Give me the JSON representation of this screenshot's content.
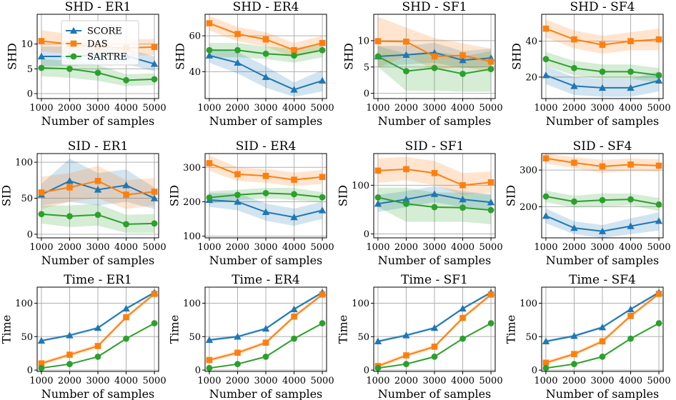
{
  "figure": {
    "xlabel": "Number of samples",
    "x_ticks": [
      1000,
      2000,
      3000,
      4000,
      5000
    ],
    "legend": {
      "placement": "inside first panel, top-left",
      "entries": [
        {
          "name": "SCORE",
          "color": "#1f77b4",
          "marker": "triangle"
        },
        {
          "name": "DAS",
          "color": "#ff7f0e",
          "marker": "square"
        },
        {
          "name": "SARTRE",
          "color": "#2ca02c",
          "marker": "circle"
        }
      ]
    }
  },
  "chart_data": [
    {
      "type": "line",
      "title": "SHD - ER1",
      "xlabel": "Number of samples",
      "ylabel": "SHD",
      "x": [
        1000,
        2000,
        3000,
        4000,
        5000
      ],
      "xlim": [
        850,
        5150
      ],
      "ylim": [
        -1,
        16
      ],
      "yticks": [
        0,
        5,
        10
      ],
      "series": [
        {
          "name": "SCORE",
          "values": [
            7.5,
            7.5,
            7.8,
            7.6,
            6.0
          ],
          "lower": [
            5.5,
            5.5,
            6.0,
            6.0,
            4.5
          ],
          "upper": [
            9.5,
            9.5,
            9.5,
            9.2,
            7.5
          ]
        },
        {
          "name": "DAS",
          "values": [
            10.6,
            10.0,
            9.4,
            9.2,
            9.4
          ],
          "lower": [
            8.5,
            8.0,
            7.5,
            7.5,
            7.8
          ],
          "upper": [
            12.8,
            12.0,
            11.4,
            11.0,
            11.0
          ]
        },
        {
          "name": "SARTRE",
          "values": [
            5.2,
            5.0,
            4.2,
            2.7,
            2.9
          ],
          "lower": [
            3.5,
            3.2,
            2.6,
            1.5,
            1.7
          ],
          "upper": [
            7.0,
            6.6,
            5.8,
            3.9,
            4.1
          ]
        }
      ]
    },
    {
      "type": "line",
      "title": "SHD - ER4",
      "xlabel": "Number of samples",
      "ylabel": "SHD",
      "x": [
        1000,
        2000,
        3000,
        4000,
        5000
      ],
      "xlim": [
        850,
        5150
      ],
      "ylim": [
        25,
        72
      ],
      "yticks": [
        40,
        60
      ],
      "series": [
        {
          "name": "SCORE",
          "values": [
            49,
            45,
            37,
            30,
            35
          ],
          "lower": [
            45,
            39,
            31,
            26,
            29
          ],
          "upper": [
            53,
            51,
            43,
            34,
            41
          ]
        },
        {
          "name": "DAS",
          "values": [
            67,
            61,
            58,
            52,
            56
          ],
          "lower": [
            63,
            57,
            54,
            48,
            52
          ],
          "upper": [
            71,
            65,
            62,
            56,
            60
          ]
        },
        {
          "name": "SARTRE",
          "values": [
            52,
            52,
            50,
            49,
            52
          ],
          "lower": [
            48,
            48,
            47,
            45,
            48
          ],
          "upper": [
            56,
            56,
            54,
            53,
            56
          ]
        }
      ]
    },
    {
      "type": "line",
      "title": "SHD - SF1",
      "xlabel": "Number of samples",
      "ylabel": "SHD",
      "x": [
        1000,
        2000,
        3000,
        4000,
        5000
      ],
      "xlim": [
        850,
        5150
      ],
      "ylim": [
        -1,
        15
      ],
      "yticks": [
        0,
        5,
        10
      ],
      "series": [
        {
          "name": "SCORE",
          "values": [
            7.0,
            7.3,
            7.7,
            6.3,
            6.7
          ],
          "lower": [
            5.0,
            5.5,
            5.8,
            4.8,
            5.0
          ],
          "upper": [
            9.0,
            9.0,
            9.6,
            8.0,
            8.5
          ]
        },
        {
          "name": "DAS",
          "values": [
            9.9,
            9.8,
            7.0,
            7.2,
            6.0
          ],
          "lower": [
            5.0,
            7.0,
            4.5,
            5.0,
            4.0
          ],
          "upper": [
            14.5,
            12.5,
            10.5,
            9.5,
            8.5
          ]
        },
        {
          "name": "SARTRE",
          "values": [
            7.0,
            4.2,
            4.8,
            3.7,
            4.6
          ],
          "lower": [
            5.0,
            0.5,
            0.5,
            0.3,
            0.3
          ],
          "upper": [
            9.0,
            7.5,
            8.0,
            7.0,
            8.0
          ]
        }
      ]
    },
    {
      "type": "line",
      "title": "SHD - SF4",
      "xlabel": "Number of samples",
      "ylabel": "SHD",
      "x": [
        1000,
        2000,
        3000,
        4000,
        5000
      ],
      "xlim": [
        850,
        5150
      ],
      "ylim": [
        8,
        55
      ],
      "yticks": [
        20,
        40
      ],
      "series": [
        {
          "name": "SCORE",
          "values": [
            21,
            15,
            14,
            14,
            18
          ],
          "lower": [
            16,
            10,
            9,
            9,
            12
          ],
          "upper": [
            26,
            20,
            19,
            19,
            23
          ]
        },
        {
          "name": "DAS",
          "values": [
            47,
            41,
            38,
            40,
            41
          ],
          "lower": [
            42,
            36,
            33,
            35,
            35
          ],
          "upper": [
            52,
            46,
            43,
            45,
            47
          ]
        },
        {
          "name": "SARTRE",
          "values": [
            30,
            25,
            23,
            23,
            21
          ],
          "lower": [
            26,
            21,
            19,
            19,
            17
          ],
          "upper": [
            34,
            29,
            27,
            27,
            25
          ]
        }
      ]
    },
    {
      "type": "line",
      "title": "SID - ER1",
      "xlabel": "Number of samples",
      "ylabel": "SID",
      "x": [
        1000,
        2000,
        3000,
        4000,
        5000
      ],
      "xlim": [
        850,
        5150
      ],
      "ylim": [
        -5,
        112
      ],
      "yticks": [
        0,
        50,
        100
      ],
      "series": [
        {
          "name": "SCORE",
          "values": [
            55,
            74,
            62,
            68,
            50
          ],
          "lower": [
            40,
            45,
            40,
            45,
            35
          ],
          "upper": [
            70,
            105,
            85,
            90,
            65
          ]
        },
        {
          "name": "DAS",
          "values": [
            58,
            65,
            74,
            55,
            59
          ],
          "lower": [
            35,
            45,
            50,
            35,
            40
          ],
          "upper": [
            80,
            85,
            95,
            75,
            78
          ]
        },
        {
          "name": "SARTRE",
          "values": [
            28,
            25,
            27,
            14,
            15
          ],
          "lower": [
            15,
            10,
            12,
            2,
            2
          ],
          "upper": [
            40,
            40,
            42,
            27,
            28
          ]
        }
      ]
    },
    {
      "type": "line",
      "title": "SID - ER4",
      "xlabel": "Number of samples",
      "ylabel": "SID",
      "x": [
        1000,
        2000,
        3000,
        4000,
        5000
      ],
      "xlim": [
        850,
        5150
      ],
      "ylim": [
        95,
        340
      ],
      "yticks": [
        100,
        200,
        300
      ],
      "series": [
        {
          "name": "SCORE",
          "values": [
            205,
            200,
            170,
            155,
            175
          ],
          "lower": [
            185,
            175,
            145,
            130,
            150
          ],
          "upper": [
            225,
            225,
            195,
            180,
            200
          ]
        },
        {
          "name": "DAS",
          "values": [
            312,
            280,
            275,
            264,
            272
          ],
          "lower": [
            290,
            260,
            255,
            245,
            252
          ],
          "upper": [
            335,
            300,
            295,
            285,
            292
          ]
        },
        {
          "name": "SARTRE",
          "values": [
            212,
            220,
            225,
            222,
            213
          ],
          "lower": [
            195,
            205,
            210,
            205,
            198
          ],
          "upper": [
            230,
            235,
            240,
            240,
            228
          ]
        }
      ]
    },
    {
      "type": "line",
      "title": "SID - SF1",
      "xlabel": "Number of samples",
      "ylabel": "SID",
      "x": [
        1000,
        2000,
        3000,
        4000,
        5000
      ],
      "xlim": [
        850,
        5150
      ],
      "ylim": [
        -8,
        165
      ],
      "yticks": [
        0,
        100
      ],
      "series": [
        {
          "name": "SCORE",
          "values": [
            62,
            71,
            82,
            71,
            65
          ],
          "lower": [
            45,
            55,
            65,
            55,
            50
          ],
          "upper": [
            80,
            88,
            98,
            88,
            82
          ]
        },
        {
          "name": "DAS",
          "values": [
            130,
            133,
            125,
            100,
            106
          ],
          "lower": [
            105,
            110,
            100,
            80,
            85
          ],
          "upper": [
            155,
            158,
            150,
            125,
            128
          ]
        },
        {
          "name": "SARTRE",
          "values": [
            75,
            62,
            55,
            54,
            49
          ],
          "lower": [
            55,
            25,
            25,
            25,
            20
          ],
          "upper": [
            95,
            95,
            85,
            85,
            80
          ]
        }
      ]
    },
    {
      "type": "line",
      "title": "SID - SF4",
      "xlabel": "Number of samples",
      "ylabel": "SID",
      "x": [
        1000,
        2000,
        3000,
        4000,
        5000
      ],
      "xlim": [
        850,
        5150
      ],
      "ylim": [
        115,
        345
      ],
      "yticks": [
        200,
        300
      ],
      "series": [
        {
          "name": "SCORE",
          "values": [
            175,
            142,
            133,
            147,
            161
          ],
          "lower": [
            155,
            125,
            115,
            125,
            135
          ],
          "upper": [
            195,
            160,
            150,
            168,
            185
          ]
        },
        {
          "name": "DAS",
          "values": [
            332,
            320,
            310,
            315,
            312
          ],
          "lower": [
            318,
            305,
            292,
            298,
            295
          ],
          "upper": [
            345,
            335,
            328,
            332,
            330
          ]
        },
        {
          "name": "SARTRE",
          "values": [
            228,
            214,
            218,
            220,
            206
          ],
          "lower": [
            212,
            198,
            200,
            204,
            188
          ],
          "upper": [
            244,
            230,
            236,
            236,
            224
          ]
        }
      ]
    },
    {
      "type": "line",
      "title": "Time - ER1",
      "xlabel": "Number of samples",
      "ylabel": "Time",
      "x": [
        1000,
        2000,
        3000,
        4000,
        5000
      ],
      "xlim": [
        850,
        5150
      ],
      "ylim": [
        -2,
        124
      ],
      "yticks": [
        0,
        50,
        100
      ],
      "series": [
        {
          "name": "SCORE",
          "values": [
            44,
            52,
            63,
            92,
            116
          ],
          "lower": [
            42,
            50,
            61,
            90,
            114
          ],
          "upper": [
            46,
            54,
            65,
            94,
            118
          ]
        },
        {
          "name": "DAS",
          "values": [
            10,
            23,
            36,
            79,
            114
          ],
          "lower": [
            7,
            20,
            33,
            76,
            111
          ],
          "upper": [
            13,
            26,
            39,
            82,
            117
          ]
        },
        {
          "name": "SARTRE",
          "values": [
            3,
            9,
            20,
            47,
            70
          ],
          "lower": [
            2,
            8,
            19,
            46,
            69
          ],
          "upper": [
            4,
            10,
            21,
            48,
            71
          ]
        }
      ]
    },
    {
      "type": "line",
      "title": "Time - ER4",
      "xlabel": "Number of samples",
      "ylabel": "Time",
      "x": [
        1000,
        2000,
        3000,
        4000,
        5000
      ],
      "xlim": [
        850,
        5150
      ],
      "ylim": [
        -2,
        124
      ],
      "yticks": [
        0,
        50,
        100
      ],
      "series": [
        {
          "name": "SCORE",
          "values": [
            45,
            50,
            62,
            91,
            116
          ],
          "lower": [
            43,
            48,
            60,
            89,
            114
          ],
          "upper": [
            47,
            52,
            64,
            93,
            118
          ]
        },
        {
          "name": "DAS",
          "values": [
            15,
            26,
            41,
            80,
            113
          ],
          "lower": [
            12,
            23,
            38,
            77,
            110
          ],
          "upper": [
            18,
            29,
            44,
            83,
            116
          ]
        },
        {
          "name": "SARTRE",
          "values": [
            3,
            9,
            20,
            47,
            70
          ],
          "lower": [
            2,
            8,
            19,
            46,
            69
          ],
          "upper": [
            4,
            10,
            21,
            48,
            71
          ]
        }
      ]
    },
    {
      "type": "line",
      "title": "Time - SF1",
      "xlabel": "Number of samples",
      "ylabel": "Time",
      "x": [
        1000,
        2000,
        3000,
        4000,
        5000
      ],
      "xlim": [
        850,
        5150
      ],
      "ylim": [
        -2,
        124
      ],
      "yticks": [
        0,
        50,
        100
      ],
      "series": [
        {
          "name": "SCORE",
          "values": [
            43,
            52,
            63,
            92,
            116
          ],
          "lower": [
            41,
            50,
            61,
            90,
            114
          ],
          "upper": [
            45,
            54,
            65,
            94,
            118
          ]
        },
        {
          "name": "DAS",
          "values": [
            6,
            22,
            35,
            78,
            113
          ],
          "lower": [
            3,
            19,
            32,
            75,
            110
          ],
          "upper": [
            9,
            25,
            38,
            81,
            116
          ]
        },
        {
          "name": "SARTRE",
          "values": [
            3,
            9,
            20,
            47,
            70
          ],
          "lower": [
            2,
            8,
            19,
            46,
            69
          ],
          "upper": [
            4,
            10,
            21,
            48,
            71
          ]
        }
      ]
    },
    {
      "type": "line",
      "title": "Time - SF4",
      "xlabel": "Number of samples",
      "ylabel": "Time",
      "x": [
        1000,
        2000,
        3000,
        4000,
        5000
      ],
      "xlim": [
        850,
        5150
      ],
      "ylim": [
        -2,
        124
      ],
      "yticks": [
        0,
        50,
        100
      ],
      "series": [
        {
          "name": "SCORE",
          "values": [
            43,
            51,
            64,
            91,
            116
          ],
          "lower": [
            41,
            49,
            62,
            89,
            114
          ],
          "upper": [
            45,
            53,
            66,
            93,
            118
          ]
        },
        {
          "name": "DAS",
          "values": [
            11,
            24,
            43,
            81,
            114
          ],
          "lower": [
            8,
            21,
            40,
            78,
            111
          ],
          "upper": [
            14,
            27,
            46,
            84,
            117
          ]
        },
        {
          "name": "SARTRE",
          "values": [
            3,
            9,
            20,
            47,
            70
          ],
          "lower": [
            2,
            8,
            19,
            46,
            69
          ],
          "upper": [
            4,
            10,
            21,
            48,
            71
          ]
        }
      ]
    }
  ]
}
